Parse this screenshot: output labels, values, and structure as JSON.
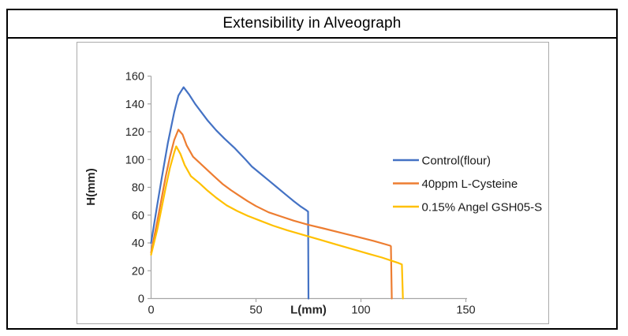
{
  "chart_data": {
    "type": "line",
    "title": "Extensibility in Alveograph",
    "xlabel": "L(mm)",
    "ylabel": "H(mm)",
    "xlim": [
      0,
      150
    ],
    "ylim": [
      0,
      160
    ],
    "x_ticks": [
      0,
      50,
      100,
      150
    ],
    "y_ticks": [
      0,
      20,
      40,
      60,
      80,
      100,
      120,
      140,
      160
    ],
    "grid": false,
    "legend_position": "right-inside",
    "axis_color": "#a6a6a6",
    "label_color": "#262626",
    "legend_text_color": "#1a1a1a",
    "series": [
      {
        "name": "Control(flour)",
        "color": "#4472c4",
        "peak": [
          15.5,
          152
        ],
        "end": [
          75,
          62.5
        ],
        "points": [
          [
            0,
            40
          ],
          [
            3,
            68
          ],
          [
            5,
            86
          ],
          [
            8,
            112
          ],
          [
            11,
            134
          ],
          [
            13,
            146
          ],
          [
            15.5,
            152
          ],
          [
            18,
            147
          ],
          [
            21,
            140
          ],
          [
            24,
            134
          ],
          [
            27,
            128
          ],
          [
            31,
            121
          ],
          [
            35,
            115
          ],
          [
            40,
            108
          ],
          [
            45,
            100
          ],
          [
            48,
            95
          ],
          [
            52,
            90
          ],
          [
            56,
            85
          ],
          [
            60,
            80
          ],
          [
            64,
            75
          ],
          [
            68,
            70
          ],
          [
            71,
            66.5
          ],
          [
            74,
            63.5
          ],
          [
            74.8,
            62.5
          ],
          [
            75,
            0
          ]
        ]
      },
      {
        "name": "40ppm L-Cysteine",
        "color": "#ed7d31",
        "peak": [
          13,
          121.5
        ],
        "end": [
          114.3,
          37.5
        ],
        "points": [
          [
            0,
            33
          ],
          [
            3,
            56
          ],
          [
            5,
            72
          ],
          [
            7,
            88
          ],
          [
            9,
            102
          ],
          [
            11,
            114
          ],
          [
            13,
            121.5
          ],
          [
            15,
            118
          ],
          [
            17,
            110
          ],
          [
            20,
            102
          ],
          [
            25,
            95
          ],
          [
            30,
            88
          ],
          [
            34,
            82.5
          ],
          [
            38,
            78
          ],
          [
            42,
            74
          ],
          [
            46,
            70
          ],
          [
            50,
            66.5
          ],
          [
            56,
            62
          ],
          [
            62,
            59
          ],
          [
            68,
            56
          ],
          [
            75,
            53
          ],
          [
            82,
            50.5
          ],
          [
            90,
            47.5
          ],
          [
            98,
            44.5
          ],
          [
            106,
            41.5
          ],
          [
            114,
            38
          ],
          [
            114.3,
            37.5
          ],
          [
            114.7,
            0
          ]
        ]
      },
      {
        "name": "0.15% Angel GSH05-S",
        "color": "#ffc000",
        "peak": [
          12,
          109.5
        ],
        "end": [
          119.5,
          24.5
        ],
        "points": [
          [
            0,
            31.5
          ],
          [
            3,
            50
          ],
          [
            5,
            65
          ],
          [
            7,
            80
          ],
          [
            9,
            94
          ],
          [
            11,
            105
          ],
          [
            12,
            109.5
          ],
          [
            14,
            104
          ],
          [
            16,
            96
          ],
          [
            19,
            88
          ],
          [
            23,
            83
          ],
          [
            27,
            77.5
          ],
          [
            31,
            72.5
          ],
          [
            36,
            67
          ],
          [
            41,
            63
          ],
          [
            46,
            59.5
          ],
          [
            52,
            56
          ],
          [
            58,
            52.5
          ],
          [
            65,
            49
          ],
          [
            72,
            46
          ],
          [
            80,
            42.5
          ],
          [
            88,
            39
          ],
          [
            96,
            35.5
          ],
          [
            104,
            32
          ],
          [
            110,
            29.5
          ],
          [
            115,
            27
          ],
          [
            118,
            25.5
          ],
          [
            119.5,
            24.5
          ],
          [
            120,
            0
          ]
        ]
      }
    ]
  }
}
